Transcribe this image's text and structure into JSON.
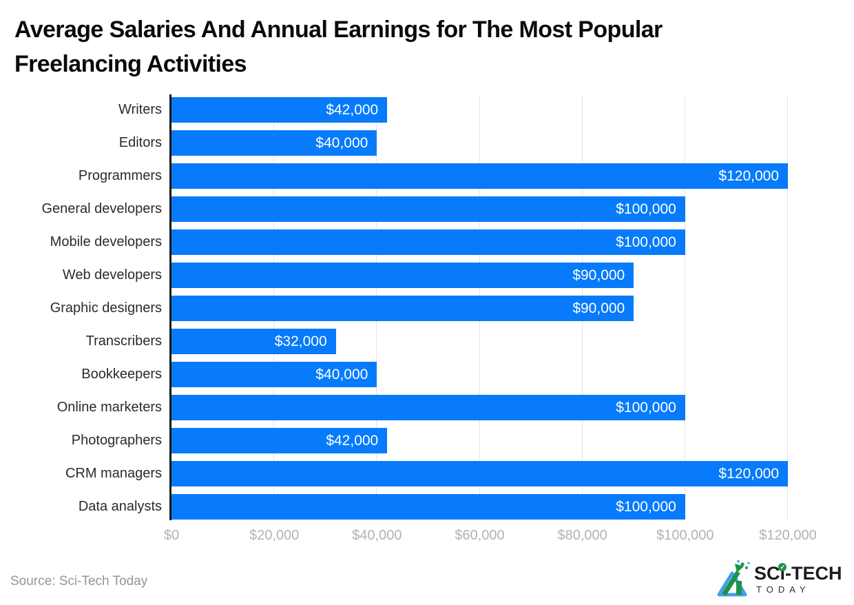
{
  "page": {
    "background": "#ffffff"
  },
  "title": {
    "line1": "Average Salaries And Annual Earnings for The Most Popular",
    "line2": "Freelancing Activities"
  },
  "source_text": "Source: Sci-Tech Today",
  "logo": {
    "brand_sc": "SC",
    "brand_i": "ı",
    "brand_tech": "-TECH",
    "brand_today": "TODAY",
    "check_glyph": "✓",
    "green": "#1f9148",
    "blue": "#3f9fe9",
    "text_color": "#1c1c1c"
  },
  "chart_data": {
    "type": "bar",
    "orientation": "horizontal",
    "title": "Average Salaries And Annual Earnings for The Most Popular Freelancing Activities",
    "categories": [
      "Writers",
      "Editors",
      "Programmers",
      "General developers",
      "Mobile developers",
      "Web developers",
      "Graphic designers",
      "Transcribers",
      "Bookkeepers",
      "Online marketers",
      "Photographers",
      "CRM managers",
      "Data analysts"
    ],
    "values": [
      42000,
      40000,
      120000,
      100000,
      100000,
      90000,
      90000,
      32000,
      40000,
      100000,
      42000,
      120000,
      100000
    ],
    "value_labels": [
      "$42,000",
      "$40,000",
      "$120,000",
      "$100,000",
      "$100,000",
      "$90,000",
      "$90,000",
      "$32,000",
      "$40,000",
      "$100,000",
      "$42,000",
      "$120,000",
      "$100,000"
    ],
    "x_ticks": [
      0,
      20000,
      40000,
      60000,
      80000,
      100000,
      120000
    ],
    "x_tick_labels": [
      "$0",
      "$20,000",
      "$40,000",
      "$60,000",
      "$80,000",
      "$100,000",
      "$120,000"
    ],
    "xlim": [
      0,
      120000
    ],
    "grid": "vertical-only",
    "legend": "none",
    "bar_color": "#077bfb",
    "value_label_color": "#ffffff",
    "category_label_color": "#2b2b2b",
    "tick_label_color": "#b2b2b2",
    "grid_color": "#e4e4e4",
    "axis_line_color": "#161616"
  }
}
